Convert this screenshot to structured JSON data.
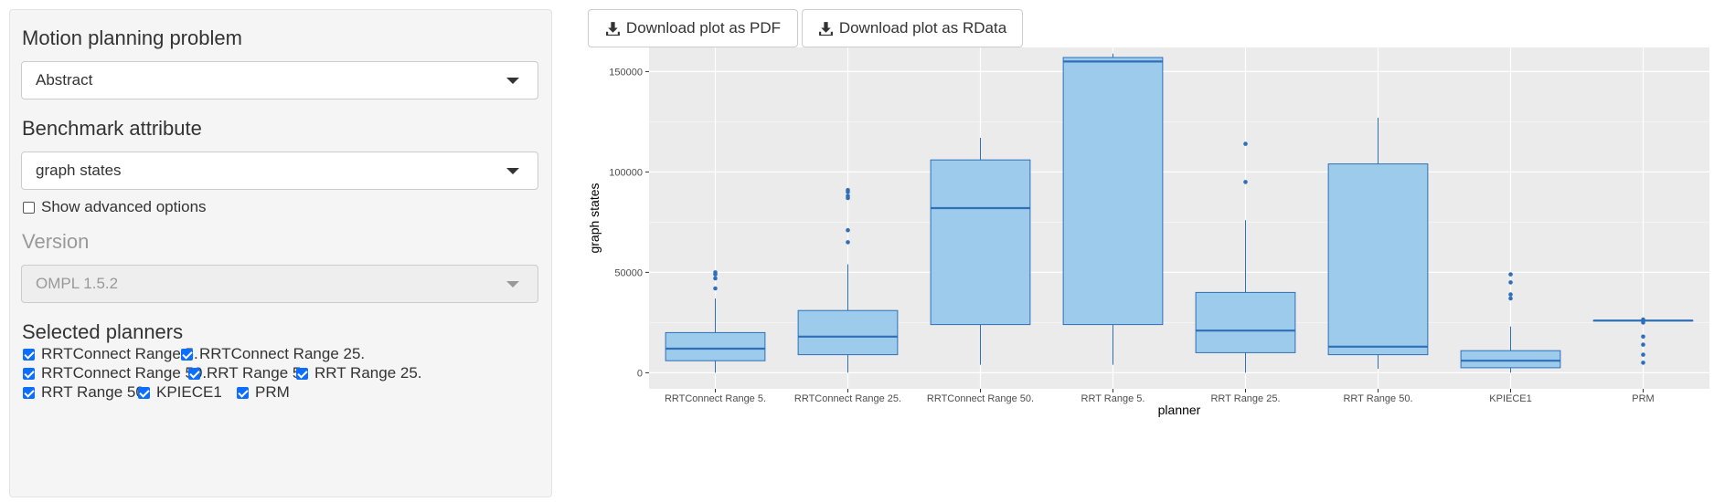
{
  "sidebar": {
    "problem_label": "Motion planning problem",
    "problem_value": "Abstract",
    "attribute_label": "Benchmark attribute",
    "attribute_value": "graph states",
    "advanced_label": "Show advanced options",
    "advanced_checked": false,
    "version_label": "Version",
    "version_value": "OMPL 1.5.2",
    "planners_label": "Selected planners",
    "planners": [
      {
        "label": "RRTConnect Range 5.",
        "checked": true
      },
      {
        "label": "RRTConnect Range 25.",
        "checked": true
      },
      {
        "label": "RRTConnect Range 50.",
        "checked": true
      },
      {
        "label": "RRT Range 5.",
        "checked": true
      },
      {
        "label": "RRT Range 25.",
        "checked": true
      },
      {
        "label": "RRT Range 50.",
        "checked": true
      },
      {
        "label": "KPIECE1",
        "checked": true
      },
      {
        "label": "PRM",
        "checked": true
      }
    ]
  },
  "toolbar": {
    "pdf_label": "Download plot as PDF",
    "rdata_label": "Download plot as RData",
    "download_icon": "download-icon"
  },
  "colors": {
    "box_fill": "#9ccbec",
    "box_stroke": "#2f6fba",
    "panel_bg": "#ebebeb",
    "grid": "#ffffff"
  },
  "chart_data": {
    "type": "box",
    "xlabel": "planner",
    "ylabel": "graph states",
    "ylim": [
      -8000,
      162000
    ],
    "yticks": [
      0,
      50000,
      100000,
      150000
    ],
    "ytick_labels": [
      "0",
      "50000",
      "100000",
      "150000"
    ],
    "categories": [
      "RRTConnect Range 5.",
      "RRTConnect Range 25.",
      "RRTConnect Range 50.",
      "RRT Range 5.",
      "RRT Range 25.",
      "RRT Range 50.",
      "KPIECE1",
      "PRM"
    ],
    "boxes": [
      {
        "q1": 6000,
        "median": 12000,
        "q3": 20000,
        "whisker_low": 0,
        "whisker_high": 37000,
        "outliers": [
          42000,
          47000,
          49000,
          50000
        ]
      },
      {
        "q1": 9000,
        "median": 18000,
        "q3": 31000,
        "whisker_low": 0,
        "whisker_high": 54000,
        "outliers": [
          65000,
          71000,
          87000,
          88000,
          90000,
          91000
        ]
      },
      {
        "q1": 24000,
        "median": 82000,
        "q3": 106000,
        "whisker_low": 4000,
        "whisker_high": 117000,
        "outliers": []
      },
      {
        "q1": 24000,
        "median": 155000,
        "q3": 157000,
        "whisker_low": 4000,
        "whisker_high": 159000,
        "outliers": []
      },
      {
        "q1": 10000,
        "median": 21000,
        "q3": 40000,
        "whisker_low": 0,
        "whisker_high": 76000,
        "outliers": [
          95000,
          114000
        ]
      },
      {
        "q1": 9000,
        "median": 13000,
        "q3": 104000,
        "whisker_low": 2000,
        "whisker_high": 127000,
        "outliers": []
      },
      {
        "q1": 2500,
        "median": 6000,
        "q3": 11000,
        "whisker_low": 0,
        "whisker_high": 23000,
        "outliers": [
          37000,
          39000,
          45000,
          49000
        ]
      },
      {
        "q1": 26000,
        "median": 26000,
        "q3": 26000,
        "whisker_low": 26000,
        "whisker_high": 26000,
        "outliers": [
          5000,
          9000,
          14000,
          18000,
          25000,
          26000,
          26500
        ]
      }
    ]
  }
}
